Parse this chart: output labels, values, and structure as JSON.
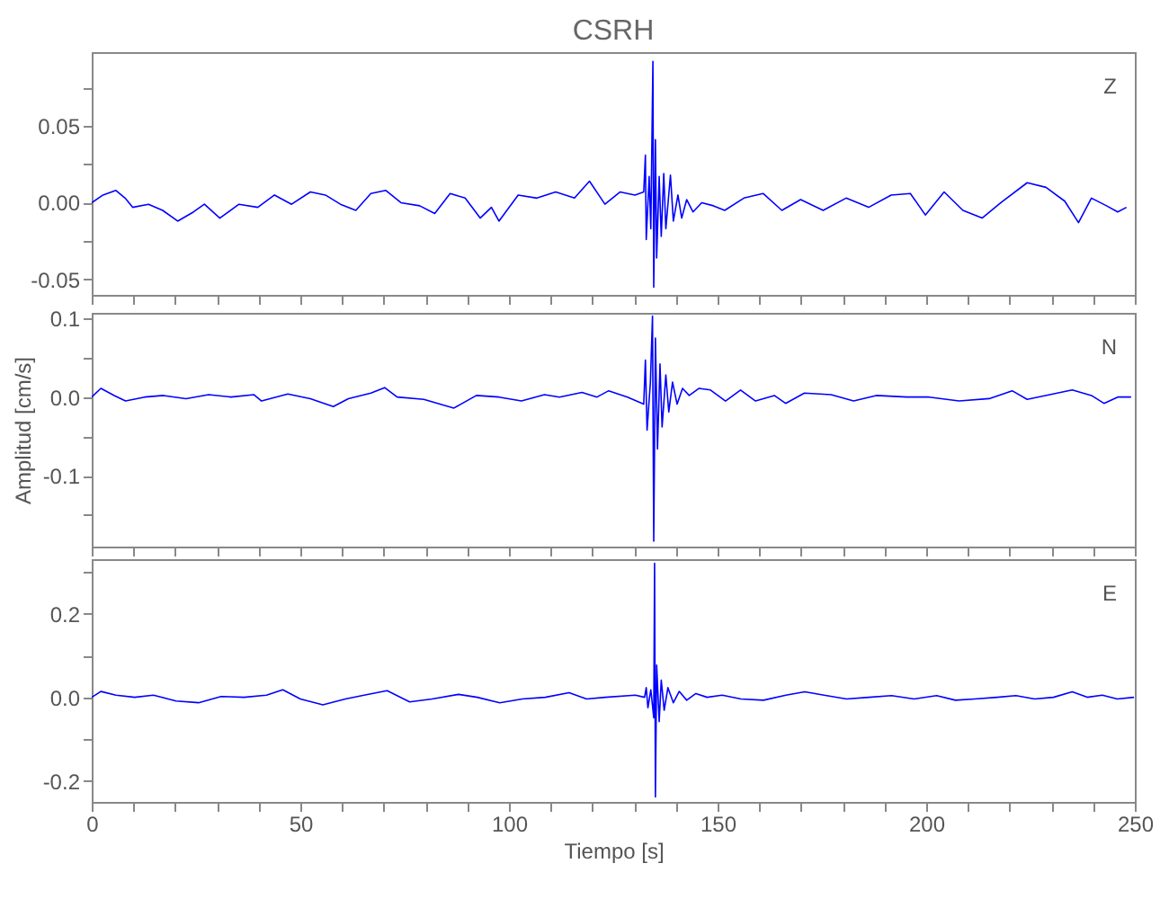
{
  "chart_data": [
    {
      "type": "line",
      "title": "CSRH",
      "annotations": [
        "Z"
      ],
      "tick_labels": "y",
      "x": [
        0,
        2.7,
        5.8,
        8,
        9.8,
        13.6,
        17,
        20.6,
        24.4,
        27,
        30.7,
        35.3,
        39.8,
        43.8,
        47.9,
        52.4,
        56,
        59.6,
        63.3,
        66.9,
        70.5,
        74.1,
        78.6,
        82.2,
        85.9,
        89.5,
        93.1,
        95.8,
        97.6,
        102.2,
        106.7,
        111.2,
        115.7,
        119.3,
        123,
        126.6,
        130.2,
        132.3,
        132.7,
        132.9,
        133.6,
        134,
        134.5,
        134.7,
        135.1,
        135.4,
        136,
        136.5,
        137.1,
        137.6,
        138.7,
        139.4,
        140.5,
        141.4,
        142.6,
        144.1,
        146.2,
        149,
        151.7,
        156.3,
        160.9,
        165.4,
        169.9,
        175.3,
        180.8,
        186.2,
        191.6,
        196.2,
        199.8,
        204.3,
        208.8,
        213.4,
        217.9,
        224.2,
        228.7,
        233.2,
        236.5,
        239.6,
        243.2,
        245.9,
        248
      ],
      "series": [
        {
          "color": "#0000ff",
          "values": [
            0,
            0.005,
            0.008,
            0.003,
            -0.003,
            -0.001,
            -0.005,
            -0.012,
            -0.006,
            -0.001,
            -0.01,
            -0.001,
            -0.003,
            0.005,
            -0.001,
            0.007,
            0.005,
            -0.001,
            -0.005,
            0.006,
            0.008,
            0,
            -0.002,
            -0.007,
            0.006,
            0.003,
            -0.01,
            -0.003,
            -0.012,
            0.005,
            0.003,
            0.007,
            0.003,
            0.014,
            -0.001,
            0.007,
            0.005,
            0.007,
            0.031,
            -0.024,
            0.017,
            -0.017,
            0.092,
            -0.055,
            0.041,
            -0.036,
            0.017,
            -0.022,
            0.019,
            -0.017,
            0.018,
            -0.012,
            0.005,
            -0.01,
            0.002,
            -0.006,
            0,
            -0.002,
            -0.005,
            0.003,
            0.006,
            -0.005,
            0.002,
            -0.005,
            0.003,
            -0.003,
            0.005,
            0.006,
            -0.008,
            0.007,
            -0.005,
            -0.01,
            0,
            0.013,
            0.01,
            0.001,
            -0.013,
            0.003,
            -0.002,
            -0.006,
            -0.003
          ]
        }
      ],
      "xlim": [
        0,
        250
      ],
      "ylim": [
        -0.06,
        0.098
      ],
      "xticks": [
        {
          "value": 0,
          "label": null
        },
        {
          "value": 10,
          "label": null
        },
        {
          "value": 20,
          "label": null
        },
        {
          "value": 30,
          "label": null
        },
        {
          "value": 40,
          "label": null
        },
        {
          "value": 50,
          "label": null
        },
        {
          "value": 60,
          "label": null
        },
        {
          "value": 70,
          "label": null
        },
        {
          "value": 80,
          "label": null
        },
        {
          "value": 90,
          "label": null
        },
        {
          "value": 100,
          "label": null
        },
        {
          "value": 110,
          "label": null
        },
        {
          "value": 120,
          "label": null
        },
        {
          "value": 130,
          "label": null
        },
        {
          "value": 140,
          "label": null
        },
        {
          "value": 150,
          "label": null
        },
        {
          "value": 160,
          "label": null
        },
        {
          "value": 170,
          "label": null
        },
        {
          "value": 180,
          "label": null
        },
        {
          "value": 190,
          "label": null
        },
        {
          "value": 200,
          "label": null
        },
        {
          "value": 210,
          "label": null
        },
        {
          "value": 220,
          "label": null
        },
        {
          "value": 230,
          "label": null
        },
        {
          "value": 240,
          "label": null
        },
        {
          "value": 250,
          "label": null
        }
      ],
      "yticks": [
        {
          "value": -0.05,
          "label": "-0.05"
        },
        {
          "value": -0.025,
          "label": null
        },
        {
          "value": 0,
          "label": "0.00"
        },
        {
          "value": 0.025,
          "label": null
        },
        {
          "value": 0.05,
          "label": "0.05"
        },
        {
          "value": 0.075,
          "label": null
        }
      ]
    },
    {
      "type": "line",
      "ylabel": "Amplitud [cm/s]",
      "annotations": [
        "N"
      ],
      "tick_labels": "y",
      "x": [
        0,
        2.2,
        5.4,
        8.1,
        12.7,
        17.2,
        22.6,
        28,
        33.4,
        38.9,
        40.7,
        47,
        52.4,
        57.9,
        61.5,
        66.9,
        70.2,
        73.2,
        79.6,
        86.8,
        92.2,
        97.6,
        103,
        108.5,
        112.1,
        117.5,
        121.1,
        123.9,
        128.4,
        132.3,
        132.7,
        133.1,
        133.9,
        134.4,
        134.7,
        135.1,
        135.6,
        136.2,
        136.7,
        137.6,
        138.3,
        139.2,
        140.3,
        141.6,
        143.2,
        145.5,
        148.3,
        151.9,
        155.5,
        159.1,
        163.6,
        166.3,
        170.8,
        177.2,
        182.6,
        188,
        195.3,
        200.7,
        207.9,
        215.1,
        220.6,
        224.2,
        229.6,
        235,
        239.6,
        242.6,
        245.9,
        249.1
      ],
      "series": [
        {
          "color": "#0000ff",
          "values": [
            0,
            0.011,
            0.002,
            -0.005,
            0,
            0.002,
            -0.002,
            0.003,
            0,
            0.003,
            -0.005,
            0.004,
            -0.002,
            -0.012,
            -0.002,
            0.005,
            0.012,
            0,
            -0.003,
            -0.014,
            0.002,
            0,
            -0.005,
            0.003,
            0,
            0.006,
            0,
            0.008,
            0,
            -0.009,
            0.047,
            -0.042,
            0.019,
            0.103,
            -0.183,
            0.075,
            -0.066,
            0.042,
            -0.038,
            0.028,
            -0.019,
            0.019,
            -0.009,
            0.011,
            0.002,
            0.011,
            0.009,
            -0.005,
            0.009,
            -0.005,
            0.002,
            -0.008,
            0.005,
            0.003,
            -0.005,
            0.002,
            0,
            0,
            -0.005,
            -0.002,
            0.008,
            -0.003,
            0.003,
            0.009,
            0.002,
            -0.008,
            0,
            0
          ]
        }
      ],
      "xlim": [
        0,
        250
      ],
      "ylim": [
        -0.19,
        0.107
      ],
      "xticks": [
        {
          "value": 0,
          "label": null
        },
        {
          "value": 10,
          "label": null
        },
        {
          "value": 20,
          "label": null
        },
        {
          "value": 30,
          "label": null
        },
        {
          "value": 40,
          "label": null
        },
        {
          "value": 50,
          "label": null
        },
        {
          "value": 60,
          "label": null
        },
        {
          "value": 70,
          "label": null
        },
        {
          "value": 80,
          "label": null
        },
        {
          "value": 90,
          "label": null
        },
        {
          "value": 100,
          "label": null
        },
        {
          "value": 110,
          "label": null
        },
        {
          "value": 120,
          "label": null
        },
        {
          "value": 130,
          "label": null
        },
        {
          "value": 140,
          "label": null
        },
        {
          "value": 150,
          "label": null
        },
        {
          "value": 160,
          "label": null
        },
        {
          "value": 170,
          "label": null
        },
        {
          "value": 180,
          "label": null
        },
        {
          "value": 190,
          "label": null
        },
        {
          "value": 200,
          "label": null
        },
        {
          "value": 210,
          "label": null
        },
        {
          "value": 220,
          "label": null
        },
        {
          "value": 230,
          "label": null
        },
        {
          "value": 240,
          "label": null
        },
        {
          "value": 250,
          "label": null
        }
      ],
      "yticks": [
        {
          "value": -0.15,
          "label": null
        },
        {
          "value": -0.1,
          "label": "-0.1"
        },
        {
          "value": -0.05,
          "label": null
        },
        {
          "value": 0,
          "label": "0.0"
        },
        {
          "value": 0.05,
          "label": null
        },
        {
          "value": 0.1,
          "label": "0.1"
        }
      ]
    },
    {
      "type": "line",
      "xlabel": "Tiempo [s]",
      "annotations": [
        "E"
      ],
      "x": [
        0,
        2.2,
        5.8,
        10.3,
        14.8,
        20.2,
        25.6,
        31,
        36.5,
        41.9,
        45.8,
        50,
        55.4,
        60.8,
        65.3,
        70.8,
        76.2,
        81.6,
        87.9,
        92.4,
        97.8,
        103.2,
        108.7,
        114.4,
        118.6,
        123.1,
        130.3,
        132.5,
        132.9,
        133.3,
        134,
        134.7,
        134.9,
        135.1,
        135.4,
        136,
        136.5,
        137.2,
        138.1,
        139.4,
        140.8,
        142.6,
        144.8,
        147.5,
        151.1,
        155.6,
        161,
        166.4,
        170.9,
        175.5,
        180.9,
        186.3,
        191.7,
        197.1,
        202.5,
        207,
        211.6,
        217,
        221.5,
        226,
        230.5,
        235,
        238.6,
        242.2,
        245.8,
        249.8
      ],
      "series": [
        {
          "color": "#0000ff",
          "values": [
            0,
            0.014,
            0.005,
            0,
            0.005,
            -0.009,
            -0.013,
            0.002,
            0,
            0.005,
            0.018,
            -0.004,
            -0.018,
            -0.004,
            0.005,
            0.016,
            -0.011,
            -0.004,
            0.007,
            0,
            -0.013,
            -0.004,
            0,
            0.011,
            -0.004,
            0,
            0.005,
            0,
            0.023,
            -0.025,
            0.018,
            -0.049,
            0.32,
            -0.238,
            0.077,
            -0.058,
            0.041,
            -0.031,
            0.023,
            -0.013,
            0.014,
            -0.007,
            0.009,
            0,
            0.005,
            -0.004,
            -0.007,
            0.005,
            0.013,
            0.005,
            -0.004,
            0,
            0.004,
            -0.004,
            0.004,
            -0.007,
            -0.004,
            0,
            0.004,
            -0.004,
            0,
            0.013,
            0,
            0.005,
            -0.004,
            0
          ]
        }
      ],
      "xlim": [
        0,
        250
      ],
      "ylim": [
        -0.25,
        0.33
      ],
      "xticks": [
        {
          "value": 0,
          "label": "0"
        },
        {
          "value": 10,
          "label": null
        },
        {
          "value": 20,
          "label": null
        },
        {
          "value": 30,
          "label": null
        },
        {
          "value": 40,
          "label": null
        },
        {
          "value": 50,
          "label": "50"
        },
        {
          "value": 60,
          "label": null
        },
        {
          "value": 70,
          "label": null
        },
        {
          "value": 80,
          "label": null
        },
        {
          "value": 90,
          "label": null
        },
        {
          "value": 100,
          "label": "100"
        },
        {
          "value": 110,
          "label": null
        },
        {
          "value": 120,
          "label": null
        },
        {
          "value": 130,
          "label": null
        },
        {
          "value": 140,
          "label": null
        },
        {
          "value": 150,
          "label": "150"
        },
        {
          "value": 160,
          "label": null
        },
        {
          "value": 170,
          "label": null
        },
        {
          "value": 180,
          "label": null
        },
        {
          "value": 190,
          "label": null
        },
        {
          "value": 200,
          "label": "200"
        },
        {
          "value": 210,
          "label": null
        },
        {
          "value": 220,
          "label": null
        },
        {
          "value": 230,
          "label": null
        },
        {
          "value": 240,
          "label": null
        },
        {
          "value": 250,
          "label": "250"
        }
      ],
      "yticks": [
        {
          "value": -0.2,
          "label": "-0.2"
        },
        {
          "value": -0.1,
          "label": null
        },
        {
          "value": 0,
          "label": "0.0"
        },
        {
          "value": 0.1,
          "label": null
        },
        {
          "value": 0.2,
          "label": "0.2"
        },
        {
          "value": 0.3,
          "label": null
        }
      ]
    }
  ]
}
